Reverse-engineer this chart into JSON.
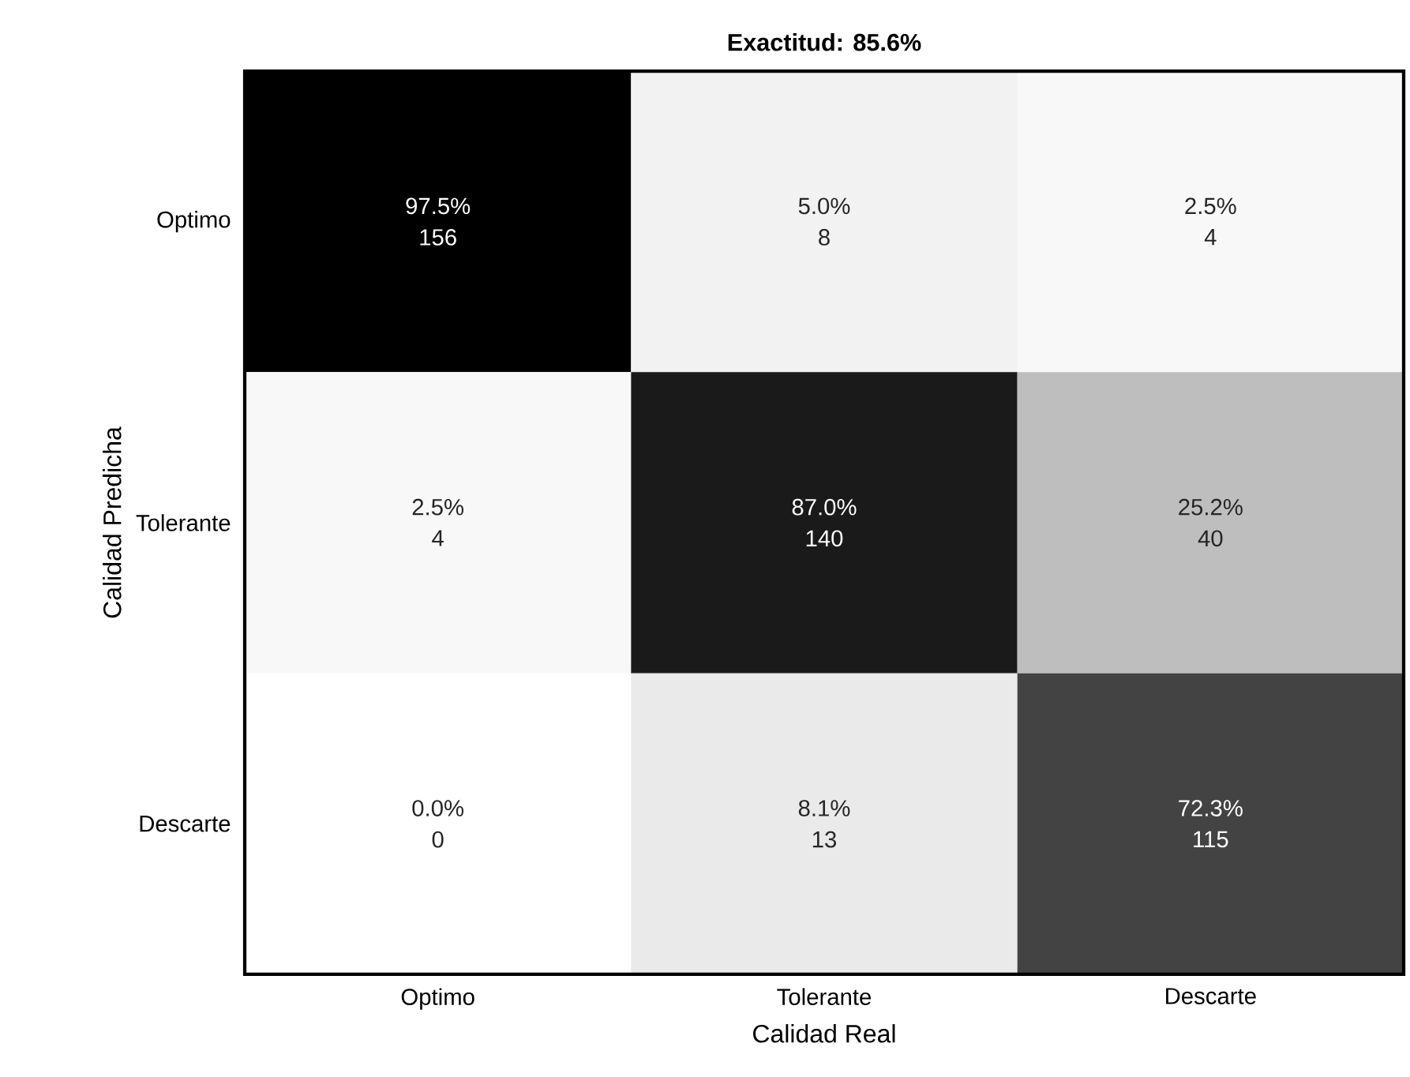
{
  "chart_data": {
    "type": "heatmap",
    "title": "Exactitud: 85.6%",
    "xlabel": "Calidad Real",
    "ylabel": "Calidad Predicha",
    "categories": [
      "Optimo",
      "Tolerante",
      "Descarte"
    ],
    "y_categories": [
      "Optimo",
      "Tolerante",
      "Descarte"
    ],
    "cells": [
      [
        156,
        8,
        4
      ],
      [
        4,
        140,
        40
      ],
      [
        0,
        13,
        115
      ]
    ],
    "data_labels": true,
    "annotations": [
      "97.5%",
      "5.0%",
      "2.5%",
      "2.5%",
      "87.0%",
      "25.2%",
      "0.0%",
      "8.1%",
      "72.3%"
    ]
  }
}
